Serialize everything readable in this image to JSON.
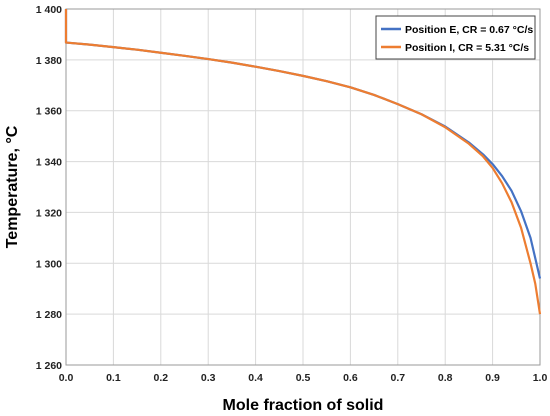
{
  "chart_data": {
    "type": "line",
    "title": "",
    "xlabel": "Mole fraction of solid",
    "ylabel": "Temperature, °C",
    "xlim": [
      0.0,
      1.0
    ],
    "ylim": [
      1260,
      1400
    ],
    "x_ticks": [
      0.0,
      0.1,
      0.2,
      0.3,
      0.4,
      0.5,
      0.6,
      0.7,
      0.8,
      0.9,
      1.0
    ],
    "x_tick_labels": [
      "0.0",
      "0.1",
      "0.2",
      "0.3",
      "0.4",
      "0.5",
      "0.6",
      "0.7",
      "0.8",
      "0.9",
      "1.0"
    ],
    "y_ticks": [
      1260,
      1280,
      1300,
      1320,
      1340,
      1360,
      1380,
      1400
    ],
    "y_tick_labels": [
      "1 260",
      "1 280",
      "1 300",
      "1 320",
      "1 340",
      "1 360",
      "1 380",
      "1 400"
    ],
    "grid": true,
    "legend_position": "top-right",
    "series": [
      {
        "name": "Position E, CR = 0.67 °C/s",
        "color": "#4472C4",
        "x": [
          0.0,
          0.0,
          0.05,
          0.1,
          0.15,
          0.2,
          0.25,
          0.3,
          0.35,
          0.4,
          0.45,
          0.5,
          0.55,
          0.6,
          0.65,
          0.7,
          0.75,
          0.8,
          0.85,
          0.88,
          0.9,
          0.92,
          0.94,
          0.96,
          0.98,
          1.0
        ],
        "y": [
          1400,
          1386.8,
          1386.0,
          1385.0,
          1384.0,
          1382.8,
          1381.6,
          1380.3,
          1378.9,
          1377.3,
          1375.6,
          1373.7,
          1371.6,
          1369.2,
          1366.2,
          1362.6,
          1358.6,
          1353.8,
          1347.5,
          1342.8,
          1339.0,
          1334.3,
          1328.5,
          1320.5,
          1310.0,
          1294.0
        ]
      },
      {
        "name": "Position I, CR = 5.31  °C/s",
        "color": "#ED7D31",
        "x": [
          0.0,
          0.0,
          0.05,
          0.1,
          0.15,
          0.2,
          0.25,
          0.3,
          0.35,
          0.4,
          0.45,
          0.5,
          0.55,
          0.6,
          0.65,
          0.7,
          0.75,
          0.8,
          0.85,
          0.88,
          0.9,
          0.92,
          0.94,
          0.96,
          0.98,
          0.99,
          1.0
        ],
        "y": [
          1400,
          1386.8,
          1386.0,
          1385.0,
          1384.0,
          1382.8,
          1381.6,
          1380.3,
          1378.9,
          1377.3,
          1375.6,
          1373.7,
          1371.6,
          1369.2,
          1366.2,
          1362.6,
          1358.6,
          1353.5,
          1347.0,
          1342.0,
          1337.5,
          1331.5,
          1324.0,
          1314.0,
          1300.0,
          1292.0,
          1280.0
        ]
      }
    ]
  }
}
